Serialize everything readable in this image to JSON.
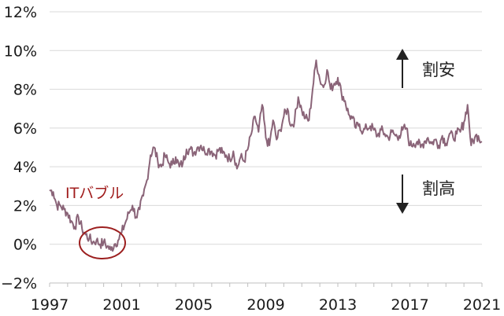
{
  "chart_data": {
    "type": "line",
    "title": "",
    "xlabel": "",
    "ylabel": "",
    "xlim": [
      1997,
      2021
    ],
    "ylim": [
      -2,
      12
    ],
    "x_ticks": [
      "1997",
      "2001",
      "2005",
      "2009",
      "2013",
      "2017",
      "2021"
    ],
    "y_ticks": [
      "12%",
      "10%",
      "8%",
      "6%",
      "4%",
      "2%",
      "0%",
      "−2%"
    ],
    "grid": "horizontal",
    "series": [
      {
        "color": "#8a6478",
        "x": [
          1997.0,
          1997.2,
          1997.4,
          1997.6,
          1997.8,
          1998.0,
          1998.2,
          1998.4,
          1998.6,
          1998.8,
          1999.0,
          1999.2,
          1999.4,
          1999.6,
          1999.8,
          2000.0,
          2000.2,
          2000.4,
          2000.6,
          2000.8,
          2001.0,
          2001.2,
          2001.4,
          2001.6,
          2001.8,
          2002.0,
          2002.2,
          2002.4,
          2002.6,
          2002.8,
          2003.0,
          2003.2,
          2003.4,
          2003.6,
          2003.8,
          2004.0,
          2004.2,
          2004.4,
          2004.6,
          2004.8,
          2005.0,
          2005.2,
          2005.4,
          2005.6,
          2005.8,
          2006.0,
          2006.2,
          2006.4,
          2006.6,
          2006.8,
          2007.0,
          2007.2,
          2007.4,
          2007.6,
          2007.8,
          2008.0,
          2008.2,
          2008.4,
          2008.6,
          2008.8,
          2009.0,
          2009.2,
          2009.4,
          2009.6,
          2009.8,
          2010.0,
          2010.2,
          2010.4,
          2010.6,
          2010.8,
          2011.0,
          2011.2,
          2011.4,
          2011.6,
          2011.8,
          2012.0,
          2012.2,
          2012.4,
          2012.6,
          2012.8,
          2013.0,
          2013.2,
          2013.4,
          2013.6,
          2013.8,
          2014.0,
          2014.2,
          2014.4,
          2014.6,
          2014.8,
          2015.0,
          2015.2,
          2015.4,
          2015.6,
          2015.8,
          2016.0,
          2016.2,
          2016.4,
          2016.6,
          2016.8,
          2017.0,
          2017.2,
          2017.4,
          2017.6,
          2017.8,
          2018.0,
          2018.2,
          2018.4,
          2018.6,
          2018.8,
          2019.0,
          2019.2,
          2019.4,
          2019.6,
          2019.8,
          2020.0,
          2020.2,
          2020.4,
          2020.6,
          2020.8,
          2021.0
        ],
        "values": [
          2.8,
          2.7,
          2.0,
          2.0,
          1.8,
          1.6,
          1.2,
          0.9,
          1.4,
          0.8,
          0.5,
          0.3,
          0.1,
          0.2,
          0.0,
          0.1,
          -0.1,
          -0.3,
          0.0,
          0.2,
          0.6,
          1.1,
          1.6,
          2.0,
          1.4,
          1.8,
          2.5,
          3.3,
          4.6,
          5.0,
          4.3,
          4.0,
          4.6,
          4.2,
          4.1,
          4.5,
          4.0,
          4.2,
          4.9,
          4.9,
          4.7,
          5.0,
          5.1,
          4.8,
          4.9,
          4.8,
          4.6,
          4.9,
          4.7,
          4.6,
          4.4,
          4.8,
          3.9,
          4.5,
          4.3,
          4.9,
          5.7,
          6.6,
          5.8,
          7.2,
          5.5,
          5.1,
          6.4,
          5.4,
          5.9,
          6.6,
          7.0,
          6.1,
          6.4,
          7.6,
          6.9,
          6.5,
          6.4,
          8.0,
          9.5,
          8.5,
          8.1,
          9.0,
          8.0,
          8.3,
          8.6,
          7.8,
          7.4,
          6.7,
          6.5,
          6.0,
          6.2,
          5.8,
          6.0,
          6.1,
          5.9,
          5.6,
          5.9,
          5.7,
          5.5,
          5.8,
          5.6,
          5.6,
          5.9,
          6.0,
          5.1,
          5.2,
          5.3,
          5.0,
          5.3,
          5.5,
          5.2,
          5.4,
          5.1,
          5.6,
          5.2,
          5.7,
          5.5,
          5.7,
          5.8,
          6.3,
          7.2,
          5.1,
          5.5,
          5.6,
          5.3
        ]
      }
    ],
    "annotations": {
      "bubble": "ITバブル",
      "cheap": "割安",
      "expensive": "割高"
    }
  }
}
